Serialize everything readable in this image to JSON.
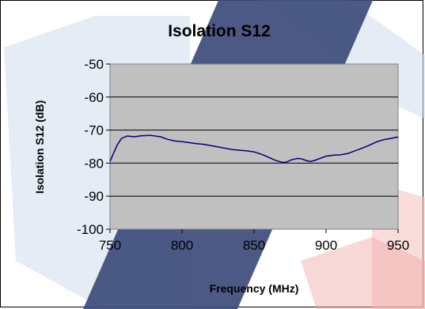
{
  "chart_data": {
    "type": "line",
    "title": "Isolation S12",
    "xlabel": "Frequency (MHz)",
    "ylabel": "Isolation S12 (dB)",
    "xlim": [
      750,
      950
    ],
    "ylim": [
      -100,
      -50
    ],
    "x_ticks": [
      "750",
      "800",
      "850",
      "900",
      "950"
    ],
    "y_ticks": [
      "-50",
      "-60",
      "-70",
      "-80",
      "-90",
      "-100"
    ],
    "grid": "horizontal",
    "plot_background": "#c0c0c0",
    "line_color": "#000080",
    "series": [
      {
        "x": [
          750,
          752,
          755,
          758,
          762,
          767,
          772,
          778,
          785,
          790,
          795,
          800,
          805,
          810,
          815,
          820,
          825,
          830,
          835,
          840,
          845,
          850,
          855,
          860,
          865,
          870,
          873,
          876,
          880,
          883,
          886,
          889,
          892,
          895,
          900,
          905,
          910,
          915,
          920,
          925,
          930,
          935,
          940,
          945,
          950
        ],
        "y": [
          -79.5,
          -77.5,
          -74.5,
          -72.5,
          -71.8,
          -72,
          -71.7,
          -71.6,
          -72,
          -72.8,
          -73.3,
          -73.5,
          -73.8,
          -74.1,
          -74.3,
          -74.7,
          -75.1,
          -75.5,
          -75.9,
          -76.1,
          -76.3,
          -76.6,
          -77.3,
          -78.2,
          -79.2,
          -79.8,
          -79.6,
          -79,
          -78.6,
          -78.7,
          -79.2,
          -79.5,
          -79.2,
          -78.7,
          -77.9,
          -77.6,
          -77.5,
          -77.1,
          -76.3,
          -75.5,
          -74.6,
          -73.6,
          -72.9,
          -72.5,
          -72.1
        ]
      }
    ]
  }
}
